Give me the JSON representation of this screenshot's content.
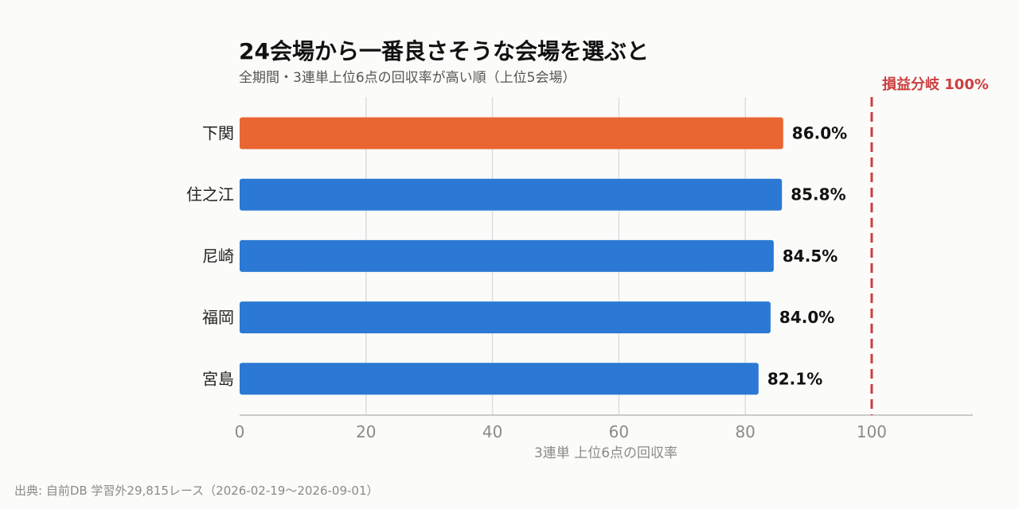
{
  "chart_data": {
    "type": "bar",
    "orientation": "horizontal",
    "title": "24会場から一番良さそうな会場を選ぶと",
    "subtitle": "全期間・3連単上位6点の回収率が高い順（上位5会場）",
    "categories": [
      "下関",
      "住之江",
      "尼崎",
      "福岡",
      "宮島"
    ],
    "values": [
      86.0,
      85.8,
      84.5,
      84.0,
      82.1
    ],
    "value_labels": [
      "86.0%",
      "85.8%",
      "84.5%",
      "84.0%",
      "82.1%"
    ],
    "highlight_index": 0,
    "xlabel": "3連単 上位6点の回収率",
    "ylabel": "",
    "xlim": [
      0,
      116
    ],
    "x_ticks": [
      0,
      20,
      40,
      60,
      80,
      100
    ],
    "grid": true,
    "reference_line": {
      "value": 100,
      "label": "損益分岐 100%"
    },
    "source": "出典: 自前DB 学習外29,815レース（2026-02-19〜2026-09-01）"
  },
  "colors": {
    "bar": "#2b79d4",
    "highlight": "#e96633",
    "reference": "#cc3f3f"
  }
}
